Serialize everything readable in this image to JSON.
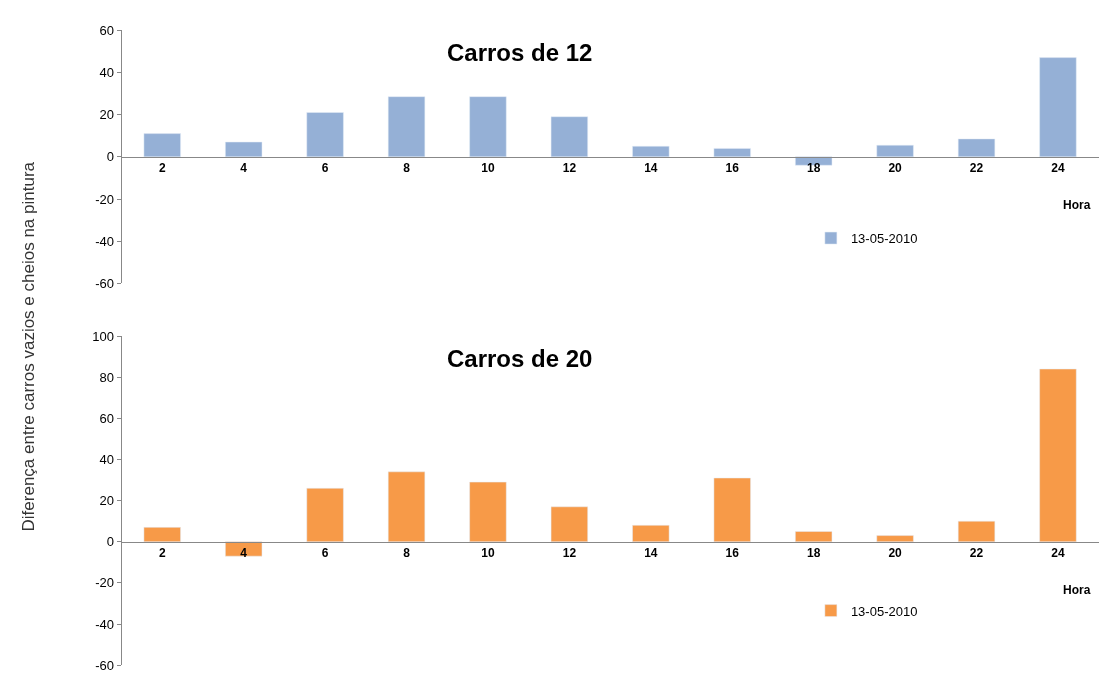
{
  "chart_data": [
    {
      "type": "bar",
      "title": "Carros de 12",
      "ylabel": "Diferença entre carros vazios e cheios na pintura",
      "xlabel": "Hora",
      "categories": [
        "2",
        "4",
        "6",
        "8",
        "10",
        "12",
        "14",
        "16",
        "18",
        "20",
        "22",
        "24"
      ],
      "series": [
        {
          "name": "13-05-2010",
          "color": "#95b0d6",
          "values": [
            11,
            7,
            21,
            28.5,
            28.5,
            19,
            5,
            4,
            -4,
            5.5,
            8.5,
            47
          ]
        }
      ],
      "ylim": [
        -60,
        60
      ],
      "yticks": [
        -60,
        -40,
        -20,
        0,
        20,
        40,
        60
      ],
      "legend": "bottom right"
    },
    {
      "type": "bar",
      "title": "Carros de 20",
      "xlabel": "Hora",
      "categories": [
        "2",
        "4",
        "6",
        "8",
        "10",
        "12",
        "14",
        "16",
        "18",
        "20",
        "22",
        "24"
      ],
      "series": [
        {
          "name": "13-05-2010",
          "color": "#f79a48",
          "values": [
            7,
            -7,
            26,
            34,
            29,
            17,
            8,
            31,
            5,
            3,
            10,
            84
          ]
        }
      ],
      "ylim": [
        -60,
        100
      ],
      "yticks": [
        -60,
        -40,
        -20,
        0,
        20,
        40,
        60,
        80,
        100
      ],
      "legend": "bottom right"
    }
  ]
}
